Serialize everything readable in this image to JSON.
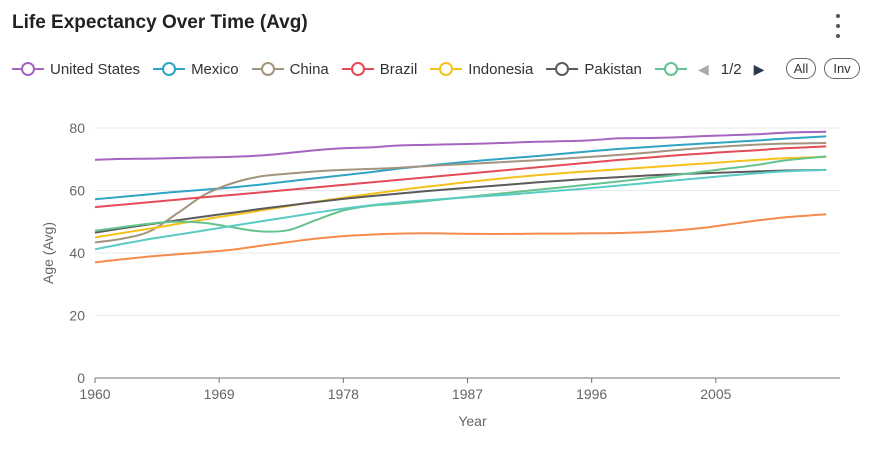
{
  "header": {
    "title": "Life Expectancy Over Time (Avg)",
    "menu_icon": "vertical-ellipsis-icon"
  },
  "legend": {
    "pager": {
      "page": "1/2",
      "all_label": "All",
      "inv_label": "Inv"
    }
  },
  "chart_data": {
    "type": "line",
    "title": "Life Expectancy Over Time (Avg)",
    "xlabel": "Year",
    "ylabel": "Age (Avg)",
    "xlim": [
      1960,
      2014
    ],
    "ylim": [
      0,
      80
    ],
    "xticks": [
      "1960",
      "1969",
      "1978",
      "1987",
      "1996",
      "2005"
    ],
    "yticks": [
      "0",
      "20",
      "40",
      "60",
      "80"
    ],
    "grid": "horizontal",
    "legend_position": "top",
    "x": [
      1960,
      1962,
      1964,
      1966,
      1968,
      1970,
      1972,
      1974,
      1976,
      1978,
      1980,
      1982,
      1984,
      1986,
      1988,
      1990,
      1992,
      1994,
      1996,
      1998,
      2000,
      2002,
      2004,
      2006,
      2008,
      2010,
      2013
    ],
    "series": [
      {
        "name": "United States",
        "color": "#a664c1",
        "values": [
          69.8,
          70.1,
          70.2,
          70.4,
          70.6,
          70.8,
          71.2,
          72.0,
          72.9,
          73.5,
          73.8,
          74.4,
          74.6,
          74.8,
          75.0,
          75.3,
          75.6,
          75.8,
          76.1,
          76.7,
          76.8,
          77.0,
          77.4,
          77.7,
          78.0,
          78.5,
          78.8
        ]
      },
      {
        "name": "Mexico",
        "color": "#2fa4c4",
        "values": [
          57.2,
          58.0,
          58.8,
          59.6,
          60.3,
          61.0,
          61.9,
          62.9,
          63.9,
          64.9,
          65.9,
          67.0,
          67.9,
          68.8,
          69.6,
          70.3,
          71.0,
          71.8,
          72.6,
          73.3,
          73.9,
          74.5,
          75.0,
          75.5,
          76.0,
          76.6,
          77.3
        ]
      },
      {
        "name": "China",
        "color": "#a39480",
        "values": [
          43.4,
          44.6,
          47.0,
          52.8,
          58.8,
          62.4,
          64.5,
          65.4,
          66.1,
          66.6,
          66.9,
          67.3,
          67.8,
          68.3,
          68.7,
          69.2,
          69.7,
          70.2,
          70.8,
          71.4,
          72.1,
          72.9,
          73.6,
          74.2,
          74.7,
          75.0,
          75.2
        ]
      },
      {
        "name": "Brazil",
        "color": "#e34b57",
        "values": [
          54.7,
          55.5,
          56.3,
          57.1,
          57.9,
          58.6,
          59.4,
          60.2,
          61.0,
          61.8,
          62.6,
          63.4,
          64.2,
          65.0,
          65.8,
          66.6,
          67.4,
          68.2,
          69.0,
          69.8,
          70.5,
          71.2,
          71.8,
          72.4,
          72.9,
          73.5,
          74.1
        ]
      },
      {
        "name": "Indonesia",
        "color": "#f5c11b",
        "values": [
          45.0,
          46.4,
          47.8,
          49.3,
          50.8,
          52.2,
          53.6,
          55.0,
          56.4,
          57.7,
          58.9,
          60.1,
          61.2,
          62.2,
          63.2,
          64.1,
          64.9,
          65.6,
          66.2,
          66.8,
          67.4,
          68.0,
          68.6,
          69.2,
          69.8,
          70.3,
          70.8
        ]
      },
      {
        "name": "Pakistan",
        "color": "#5b5b5b",
        "values": [
          46.5,
          47.9,
          49.2,
          50.5,
          51.7,
          52.9,
          54.1,
          55.2,
          56.3,
          57.3,
          58.2,
          59.0,
          59.8,
          60.5,
          61.2,
          61.9,
          62.6,
          63.2,
          63.8,
          64.3,
          64.8,
          65.2,
          65.5,
          65.8,
          66.1,
          66.4,
          66.6
        ]
      },
      {
        "name": "",
        "color": "#66c28e",
        "values": [
          47.1,
          48.3,
          49.4,
          50.0,
          49.6,
          48.2,
          46.9,
          47.3,
          50.5,
          53.6,
          55.1,
          55.8,
          56.6,
          57.5,
          58.4,
          59.3,
          60.2,
          61.1,
          62.0,
          62.9,
          63.9,
          64.9,
          66.0,
          67.1,
          68.2,
          69.6,
          70.9
        ]
      },
      {
        "name": "",
        "color": "#5bcbc4",
        "values": [
          41.2,
          42.9,
          44.5,
          45.9,
          47.3,
          48.7,
          50.1,
          51.5,
          52.9,
          54.2,
          55.3,
          56.2,
          56.9,
          57.5,
          58.1,
          58.7,
          59.4,
          60.1,
          60.8,
          61.6,
          62.4,
          63.2,
          64.0,
          64.8,
          65.5,
          66.1,
          66.6
        ]
      },
      {
        "name": "",
        "color": "#f58b4f",
        "values": [
          37.0,
          38.0,
          38.9,
          39.6,
          40.3,
          41.1,
          42.3,
          43.5,
          44.6,
          45.4,
          45.9,
          46.2,
          46.3,
          46.2,
          46.1,
          46.1,
          46.2,
          46.2,
          46.3,
          46.4,
          46.7,
          47.2,
          48.0,
          49.2,
          50.4,
          51.4,
          52.4
        ]
      }
    ]
  }
}
